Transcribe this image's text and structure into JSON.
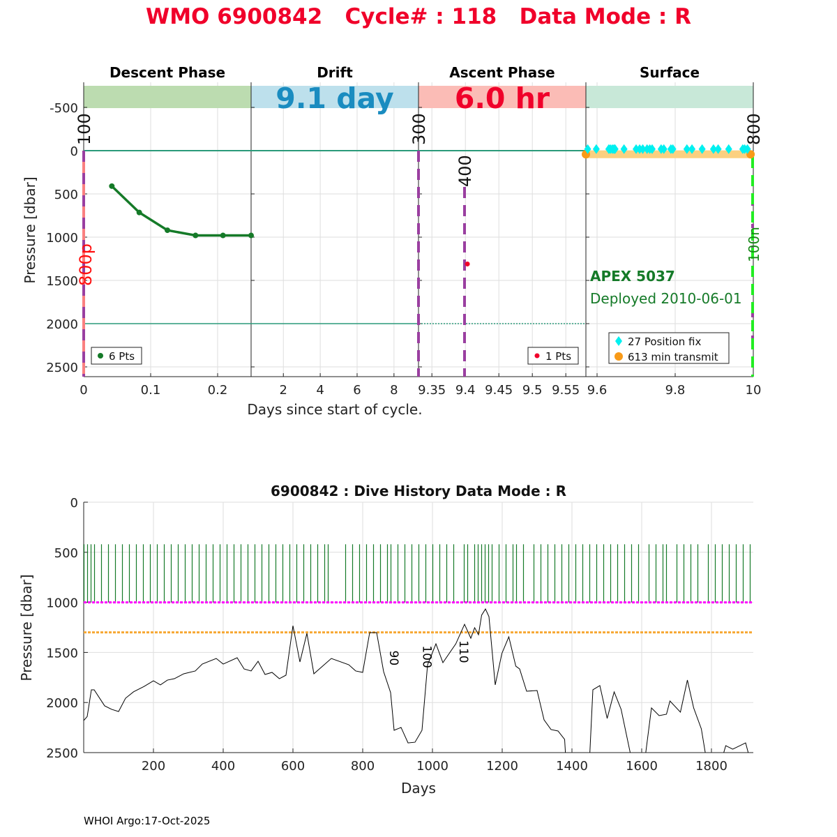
{
  "title": "WMO 6900842   Cycle# : 118   Data Mode : R",
  "footer": "WHOI Argo:17-Oct-2025",
  "colors": {
    "title": "#f0002a",
    "profile": "#157a28",
    "teal": "#2a9a7a",
    "magenta": "#ff00ff",
    "orange": "#f7a833",
    "cyan": "#00f0f0",
    "purple": "#9a3fa0",
    "green_dash": "#22ee22",
    "red": "#f0002a",
    "blue": "#1a8cc0"
  },
  "chart_data": [
    {
      "type": "line",
      "name": "cycle-timeline",
      "ylabel": "Pressure [dbar]",
      "xlabel": "Days since start of cycle.",
      "ylim": [
        -750,
        2610
      ],
      "yticks": [
        "-500",
        "0",
        "500",
        "1000",
        "1500",
        "2000",
        "2500"
      ],
      "ytick_values": [
        -500,
        0,
        500,
        1000,
        1500,
        2000,
        2500
      ],
      "panels": [
        {
          "title": "Descent Phase",
          "bar_color": "#bcdcb0",
          "bar_label": "",
          "xlim": [
            0,
            0.25
          ],
          "xticks": [
            0,
            0.1,
            0.2
          ],
          "xtick_labels": [
            "0",
            "0.1",
            "0.2"
          ]
        },
        {
          "title": "Drift",
          "bar_color": "#bde0ec",
          "bar_label": "9.1 day",
          "bar_label_color": "#1a8cc0",
          "xlim": [
            0.25,
            9.33
          ],
          "xticks": [
            2,
            4,
            6,
            8
          ],
          "xtick_labels": [
            "2",
            "4",
            "6",
            "8"
          ]
        },
        {
          "title": "Ascent Phase",
          "bar_color": "#fbbcb6",
          "bar_label": "6.0 hr",
          "bar_label_color": "#f0002a",
          "xlim": [
            9.33,
            9.58
          ],
          "xticks": [
            9.35,
            9.4,
            9.45,
            9.5,
            9.55
          ],
          "xtick_labels": [
            "9.35",
            "9.4",
            "9.45",
            "9.5",
            "9.55"
          ]
        },
        {
          "title": "Surface",
          "bar_color": "#c8e8d8",
          "bar_label": "",
          "xlim": [
            9.5714,
            10
          ],
          "xticks": [
            9.6,
            9.8,
            10
          ],
          "xtick_labels": [
            "9.6",
            "9.8",
            "10"
          ]
        }
      ],
      "descent_points": {
        "x": [
          0.042,
          0.083,
          0.125,
          0.167,
          0.208,
          0.25
        ],
        "y": [
          410,
          715,
          920,
          980,
          980,
          980
        ],
        "legend": "6 Pts"
      },
      "ascent_points": {
        "x": [
          9.403
        ],
        "y": [
          1310
        ],
        "legend": "1 Pts"
      },
      "position_fixes": {
        "legend": "27 Position fix",
        "pressure": -50,
        "x": [
          9.576,
          9.598,
          9.63,
          9.634,
          9.639,
          9.643,
          9.646,
          9.669,
          9.7,
          9.709,
          9.717,
          9.728,
          9.735,
          9.741,
          9.764,
          9.771,
          9.789,
          9.794,
          9.83,
          9.843,
          9.869,
          9.898,
          9.91,
          9.937,
          9.973,
          9.978,
          9.985
        ]
      },
      "transmit": {
        "legend": "613 min transmit",
        "pressure": 50,
        "x_start": 9.5714,
        "x_end": 9.993
      },
      "event_markers": [
        {
          "label": "100",
          "panel": 0,
          "x": 0,
          "color": "purple"
        },
        {
          "label": "300",
          "panel": 2,
          "x": 9.33,
          "color": "purple"
        },
        {
          "label": "400",
          "panel": 2,
          "x": 9.405,
          "color": "purple"
        },
        {
          "label": "800",
          "panel": 3,
          "x": 10,
          "color": "green"
        }
      ],
      "side_labels": {
        "left": "800p",
        "right": "100n"
      },
      "float_info": {
        "model": "APEX 5037",
        "deployed": "Deployed 2010-06-01"
      },
      "reference_lines": [
        0,
        2000
      ]
    },
    {
      "type": "line",
      "name": "dive-history",
      "title": "6900842 : Dive History      Data Mode : R",
      "xlabel": "Days",
      "ylabel": "Pressure [dbar]",
      "xlim": [
        0,
        1920
      ],
      "ylim": [
        0,
        2500
      ],
      "xticks": [
        200,
        400,
        600,
        800,
        1000,
        1200,
        1400,
        1600,
        1800
      ],
      "xtick_labels": [
        "200",
        "400",
        "600",
        "800",
        "1000",
        "1200",
        "1400",
        "1600",
        "1800"
      ],
      "yticks": [
        0,
        500,
        1000,
        1500,
        2000,
        2500
      ],
      "ytick_labels": [
        "0",
        "500",
        "1000",
        "1500",
        "2000",
        "2500"
      ],
      "park_pressure": 1000,
      "ref_pressure": 1300,
      "profile_top_pressure": 420,
      "profile_days": [
        1,
        11,
        21,
        31,
        51,
        71,
        91,
        111,
        131,
        151,
        171,
        191,
        211,
        231,
        251,
        271,
        291,
        311,
        331,
        351,
        371,
        391,
        411,
        431,
        451,
        471,
        491,
        511,
        531,
        551,
        571,
        591,
        611,
        631,
        651,
        671,
        691,
        701,
        751,
        771,
        791,
        811,
        831,
        851,
        871,
        881,
        901,
        921,
        941,
        961,
        981,
        1001,
        1021,
        1041,
        1061,
        1091,
        1101,
        1121,
        1131,
        1141,
        1151,
        1161,
        1171,
        1191,
        1211,
        1231,
        1241,
        1261,
        1291,
        1311,
        1331,
        1351,
        1371,
        1391,
        1411,
        1431,
        1451,
        1471,
        1491,
        1511,
        1531,
        1551,
        1571,
        1591,
        1621,
        1641,
        1661,
        1671,
        1701,
        1721,
        1741,
        1761,
        1791,
        1811,
        1831,
        1851,
        1871,
        1891,
        1911
      ],
      "bottom_series": {
        "x": [
          0,
          10,
          22,
          30,
          60,
          80,
          100,
          120,
          143,
          173,
          200,
          220,
          240,
          260,
          287,
          320,
          340,
          380,
          400,
          440,
          460,
          480,
          500,
          520,
          540,
          561,
          580,
          600,
          620,
          640,
          660,
          710,
          760,
          780,
          800,
          820,
          840,
          860,
          880,
          890,
          910,
          930,
          950,
          970,
          986,
          1010,
          1030,
          1067,
          1092,
          1110,
          1121,
          1132,
          1141,
          1152,
          1162,
          1180,
          1199,
          1219,
          1239,
          1250,
          1270,
          1300,
          1320,
          1340,
          1360,
          1379,
          1383,
          1450,
          1460,
          1480,
          1501,
          1521,
          1541,
          1573,
          1608,
          1628,
          1650,
          1671,
          1681,
          1711,
          1731,
          1749,
          1771,
          1787,
          1827,
          1841,
          1861,
          1898,
          1913
        ],
        "y": [
          2180,
          2140,
          1873,
          1873,
          2033,
          2068,
          2090,
          1957,
          1893,
          1840,
          1783,
          1824,
          1776,
          1762,
          1713,
          1685,
          1616,
          1560,
          1616,
          1553,
          1665,
          1685,
          1588,
          1720,
          1699,
          1762,
          1727,
          1233,
          1595,
          1309,
          1713,
          1560,
          1623,
          1685,
          1699,
          1302,
          1302,
          1692,
          1901,
          2277,
          2249,
          2403,
          2396,
          2277,
          1623,
          1414,
          1602,
          1414,
          1219,
          1358,
          1253,
          1323,
          1128,
          1066,
          1142,
          1824,
          1511,
          1344,
          1637,
          1665,
          1887,
          1880,
          2173,
          2270,
          2284,
          2368,
          2600,
          2600,
          1873,
          1831,
          2159,
          1894,
          2068,
          2600,
          2600,
          2054,
          2131,
          2117,
          1985,
          2096,
          1776,
          2054,
          2263,
          2600,
          2600,
          2431,
          2466,
          2403,
          2600
        ]
      },
      "cycle_labels": [
        {
          "label": "90",
          "x": 890,
          "y": 1480
        },
        {
          "label": "100",
          "x": 985,
          "y": 1430
        },
        {
          "label": "110",
          "x": 1090,
          "y": 1380
        }
      ]
    }
  ]
}
